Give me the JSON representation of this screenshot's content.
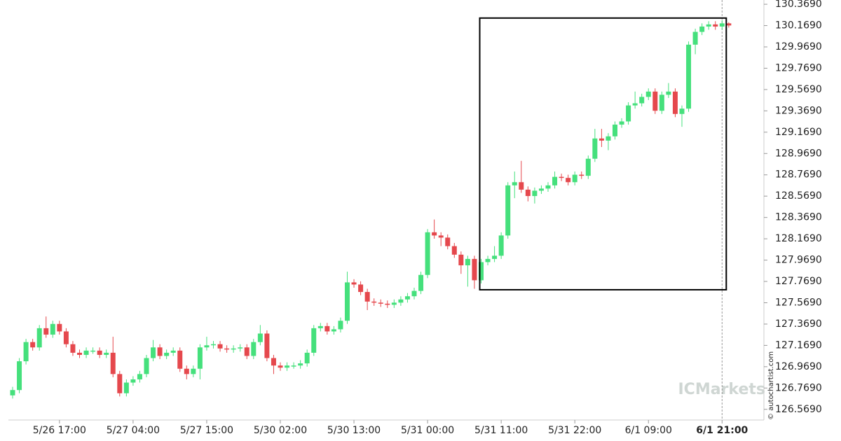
{
  "chart_data": {
    "type": "candlestick",
    "categories": [
      null,
      null,
      null,
      null,
      null,
      null,
      null,
      "5/26 17:00",
      null,
      null,
      null,
      null,
      null,
      null,
      null,
      null,
      null,
      null,
      "5/27 04:00",
      null,
      null,
      null,
      null,
      null,
      null,
      null,
      null,
      null,
      null,
      "5/27 15:00",
      null,
      null,
      null,
      null,
      null,
      null,
      null,
      null,
      null,
      null,
      "5/30 02:00",
      null,
      null,
      null,
      null,
      null,
      null,
      null,
      null,
      null,
      null,
      "5/30 13:00",
      null,
      null,
      null,
      null,
      null,
      null,
      null,
      null,
      null,
      null,
      "5/31 00:00",
      null,
      null,
      null,
      null,
      null,
      null,
      null,
      null,
      null,
      null,
      "5/31 11:00",
      null,
      null,
      null,
      null,
      null,
      null,
      null,
      null,
      null,
      null,
      "5/31 22:00",
      null,
      null,
      null,
      null,
      null,
      null,
      null,
      null,
      null,
      null,
      "6/1 09:00",
      null,
      null,
      null,
      null,
      null,
      null,
      null,
      null,
      null,
      null,
      "6/1 21:00",
      null
    ],
    "open": [
      126.7,
      126.75,
      127.02,
      127.2,
      127.15,
      127.33,
      127.27,
      127.37,
      127.3,
      127.18,
      127.1,
      127.08,
      127.12,
      127.12,
      127.08,
      127.1,
      126.9,
      126.72,
      126.82,
      126.85,
      126.9,
      127.05,
      127.15,
      127.07,
      127.1,
      127.12,
      126.95,
      126.9,
      126.95,
      127.15,
      127.17,
      127.18,
      127.14,
      127.13,
      127.14,
      127.15,
      127.07,
      127.2,
      127.28,
      127.05,
      126.98,
      126.96,
      126.98,
      126.98,
      127.0,
      127.1,
      127.33,
      127.35,
      127.3,
      127.32,
      127.4,
      127.76,
      127.74,
      127.67,
      127.58,
      127.57,
      127.56,
      127.55,
      127.57,
      127.6,
      127.63,
      127.68,
      127.83,
      128.23,
      128.2,
      128.18,
      128.1,
      128.02,
      127.92,
      127.98,
      127.78,
      127.95,
      127.98,
      128.01,
      128.2,
      128.67,
      128.7,
      128.63,
      128.57,
      128.62,
      128.64,
      128.67,
      128.75,
      128.74,
      128.7,
      128.77,
      128.76,
      128.92,
      129.11,
      129.09,
      129.13,
      129.24,
      129.27,
      129.42,
      129.44,
      129.5,
      129.55,
      129.37,
      129.52,
      129.55,
      129.34,
      129.39,
      129.99,
      130.11,
      130.16,
      130.18,
      130.16,
      130.19
    ],
    "high": [
      126.78,
      127.05,
      127.23,
      127.23,
      127.36,
      127.44,
      127.4,
      127.4,
      127.33,
      127.21,
      127.13,
      127.15,
      127.15,
      127.15,
      127.13,
      127.25,
      126.93,
      126.85,
      126.88,
      126.93,
      127.08,
      127.22,
      127.18,
      127.13,
      127.15,
      127.15,
      126.98,
      126.98,
      127.18,
      127.25,
      127.21,
      127.21,
      127.17,
      127.17,
      127.18,
      127.18,
      127.23,
      127.36,
      127.31,
      127.08,
      127.01,
      127.01,
      127.01,
      127.03,
      127.13,
      127.36,
      127.38,
      127.38,
      127.35,
      127.43,
      127.86,
      127.79,
      127.77,
      127.7,
      127.61,
      127.6,
      127.59,
      127.6,
      127.63,
      127.66,
      127.71,
      127.86,
      128.26,
      128.35,
      128.23,
      128.21,
      128.13,
      128.05,
      128.01,
      128.01,
      127.98,
      128.01,
      128.1,
      128.23,
      128.7,
      128.8,
      128.9,
      128.66,
      128.65,
      128.67,
      128.7,
      128.8,
      128.78,
      128.77,
      128.8,
      128.8,
      128.95,
      129.2,
      129.2,
      129.16,
      129.27,
      129.3,
      129.45,
      129.55,
      129.53,
      129.58,
      129.58,
      129.55,
      129.63,
      129.58,
      129.42,
      130.02,
      130.14,
      130.19,
      130.21,
      130.21,
      130.22,
      130.2
    ],
    "low": [
      126.67,
      126.72,
      126.99,
      127.12,
      127.12,
      127.24,
      127.24,
      127.27,
      127.15,
      127.07,
      127.05,
      127.05,
      127.09,
      127.05,
      127.05,
      126.87,
      126.69,
      126.69,
      126.79,
      126.82,
      126.87,
      127.02,
      127.04,
      127.04,
      127.07,
      126.92,
      126.85,
      126.87,
      126.85,
      127.12,
      127.14,
      127.11,
      127.1,
      127.1,
      127.11,
      127.04,
      127.04,
      127.17,
      127.02,
      126.9,
      126.93,
      126.93,
      126.95,
      126.95,
      126.97,
      127.07,
      127.3,
      127.27,
      127.27,
      127.29,
      127.37,
      127.71,
      127.64,
      127.5,
      127.54,
      127.53,
      127.52,
      127.52,
      127.54,
      127.57,
      127.6,
      127.65,
      127.8,
      128.17,
      128.1,
      128.07,
      127.99,
      127.84,
      127.72,
      127.7,
      127.75,
      127.92,
      127.95,
      127.98,
      128.17,
      128.55,
      128.6,
      128.52,
      128.5,
      128.59,
      128.61,
      128.64,
      128.71,
      128.67,
      128.67,
      128.73,
      128.73,
      128.89,
      129.03,
      129.0,
      129.1,
      129.21,
      129.24,
      129.39,
      129.41,
      129.47,
      129.34,
      129.34,
      129.49,
      129.31,
      129.22,
      129.36,
      129.9,
      130.08,
      130.13,
      130.13,
      130.13,
      130.15
    ],
    "close": [
      126.75,
      127.02,
      127.2,
      127.15,
      127.33,
      127.27,
      127.37,
      127.3,
      127.18,
      127.1,
      127.08,
      127.12,
      127.12,
      127.08,
      127.1,
      126.9,
      126.72,
      126.82,
      126.85,
      126.9,
      127.05,
      127.15,
      127.07,
      127.1,
      127.12,
      126.95,
      126.9,
      126.95,
      127.15,
      127.17,
      127.18,
      127.14,
      127.13,
      127.14,
      127.15,
      127.07,
      127.2,
      127.28,
      127.05,
      126.98,
      126.96,
      126.98,
      126.98,
      127.0,
      127.1,
      127.33,
      127.35,
      127.3,
      127.32,
      127.4,
      127.76,
      127.74,
      127.67,
      127.58,
      127.57,
      127.56,
      127.55,
      127.57,
      127.6,
      127.63,
      127.68,
      127.83,
      128.23,
      128.2,
      128.18,
      128.1,
      128.02,
      127.92,
      127.98,
      127.78,
      127.95,
      127.98,
      128.01,
      128.2,
      128.67,
      128.7,
      128.63,
      128.57,
      128.62,
      128.64,
      128.67,
      128.75,
      128.74,
      128.7,
      128.77,
      128.76,
      128.92,
      129.11,
      129.09,
      129.13,
      129.24,
      129.27,
      129.42,
      129.44,
      129.5,
      129.55,
      129.37,
      129.52,
      129.55,
      129.34,
      129.39,
      129.99,
      130.11,
      130.16,
      130.18,
      130.16,
      130.19,
      130.17
    ],
    "up_color": "#45e07c",
    "down_color": "#e5484d",
    "ylim": [
      126.469,
      130.409
    ],
    "yticks": [
      {
        "value": 126.569,
        "label": "126.5690"
      },
      {
        "value": 126.769,
        "label": "126.7690"
      },
      {
        "value": 126.969,
        "label": "126.9690"
      },
      {
        "value": 127.169,
        "label": "127.1690"
      },
      {
        "value": 127.369,
        "label": "127.3690"
      },
      {
        "value": 127.569,
        "label": "127.5690"
      },
      {
        "value": 127.769,
        "label": "127.7690"
      },
      {
        "value": 127.969,
        "label": "127.9690"
      },
      {
        "value": 128.169,
        "label": "128.1690"
      },
      {
        "value": 128.369,
        "label": "128.3690"
      },
      {
        "value": 128.569,
        "label": "128.5690"
      },
      {
        "value": 128.769,
        "label": "128.7690"
      },
      {
        "value": 128.969,
        "label": "128.9690"
      },
      {
        "value": 129.169,
        "label": "129.1690"
      },
      {
        "value": 129.369,
        "label": "129.3690"
      },
      {
        "value": 129.569,
        "label": "129.5690"
      },
      {
        "value": 129.769,
        "label": "129.7690"
      },
      {
        "value": 129.969,
        "label": "129.9690"
      },
      {
        "value": 130.169,
        "label": "130.1690"
      },
      {
        "value": 130.369,
        "label": "130.3690"
      }
    ],
    "grid": false,
    "brand": "ICMarkets",
    "credit": "© autochartist.com"
  }
}
